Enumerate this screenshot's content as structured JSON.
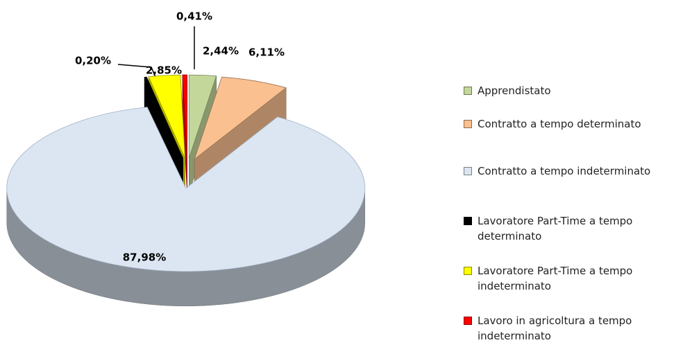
{
  "chart_data": {
    "type": "pie",
    "categories": [
      "Apprendistato",
      "Contratto a tempo determinato",
      "Contratto a tempo indeterminato",
      "Lavoratore Part-Time a tempo determinato",
      "Lavoratore Part-Time a tempo indeterminato",
      "Lavoro in agricoltura a tempo indeterminato"
    ],
    "values": [
      2.44,
      6.11,
      87.98,
      0.2,
      2.85,
      0.41
    ],
    "value_labels": [
      "2,44%",
      "6,11%",
      "87,98%",
      "0,20%",
      "2,85%",
      "0,41%"
    ],
    "colors": [
      "#c4d79b",
      "#fac090",
      "#dce6f2",
      "#000000",
      "#ffff00",
      "#ff0000"
    ],
    "legend": "right"
  }
}
